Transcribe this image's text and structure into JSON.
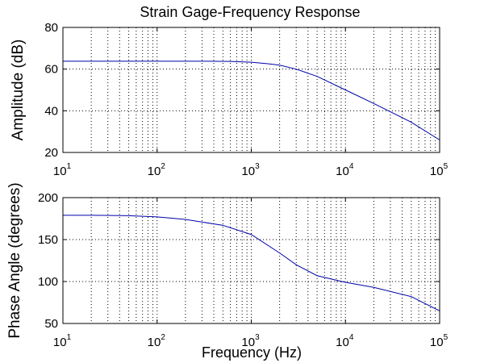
{
  "figure": {
    "title": "Strain Gage-Frequency Response",
    "xlabel": "Frequency (Hz)"
  },
  "colors": {
    "line": "#0000aa",
    "axes": "#000000",
    "background": "#ffffff"
  },
  "chart_data": [
    {
      "type": "line",
      "title": "Strain Gage-Frequency Response",
      "xlabel": "",
      "ylabel": "Amplitude (dB)",
      "xscale": "log",
      "xlim": [
        10,
        100000
      ],
      "ylim": [
        20,
        80
      ],
      "xticks": [
        10,
        100,
        1000,
        10000,
        100000
      ],
      "xtick_labels": [
        {
          "base": "10",
          "exp": "1"
        },
        {
          "base": "10",
          "exp": "2"
        },
        {
          "base": "10",
          "exp": "3"
        },
        {
          "base": "10",
          "exp": "4"
        },
        {
          "base": "10",
          "exp": "5"
        }
      ],
      "yticks": [
        20,
        40,
        60,
        80
      ],
      "ytick_labels": [
        "20",
        "40",
        "60",
        "80"
      ],
      "grid": true,
      "series": [
        {
          "x": [
            10,
            30,
            100,
            300,
            600,
            1000,
            1500,
            2000,
            3000,
            5000,
            10000,
            20000,
            50000,
            100000
          ],
          "y": [
            63.8,
            63.8,
            63.8,
            63.8,
            63.7,
            63.3,
            62.6,
            61.9,
            60.0,
            56.5,
            50.0,
            43.5,
            34.5,
            26.0
          ]
        }
      ]
    },
    {
      "type": "line",
      "title": "",
      "xlabel": "Frequency (Hz)",
      "ylabel": "Phase Angle (degrees)",
      "xscale": "log",
      "xlim": [
        10,
        100000
      ],
      "ylim": [
        50,
        200
      ],
      "xticks": [
        10,
        100,
        1000,
        10000,
        100000
      ],
      "xtick_labels": [
        {
          "base": "10",
          "exp": "1"
        },
        {
          "base": "10",
          "exp": "2"
        },
        {
          "base": "10",
          "exp": "3"
        },
        {
          "base": "10",
          "exp": "4"
        },
        {
          "base": "10",
          "exp": "5"
        }
      ],
      "yticks": [
        50,
        100,
        150,
        200
      ],
      "ytick_labels": [
        "50",
        "100",
        "150",
        "200"
      ],
      "grid": true,
      "series": [
        {
          "x": [
            10,
            20,
            50,
            100,
            200,
            500,
            1000,
            2000,
            3000,
            5000,
            10000,
            20000,
            50000,
            100000
          ],
          "y": [
            179,
            179,
            178.5,
            177,
            174,
            167,
            156,
            134,
            120,
            107,
            99,
            93,
            82,
            65
          ]
        }
      ]
    }
  ]
}
